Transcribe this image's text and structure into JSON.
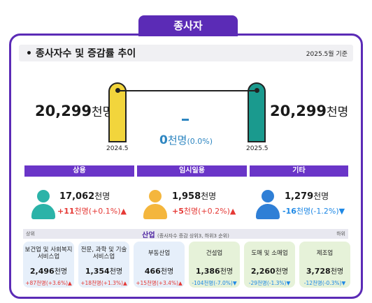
{
  "tab_label": "종사자",
  "section_title": "• 종사자수 및 증감률 추이",
  "reference_date": "2025.5월 기준",
  "total": {
    "left_value": "20,299",
    "right_value": "20,299",
    "unit": "천명",
    "left_year": "2024.5",
    "right_year": "2025.5",
    "change_value": "0",
    "change_unit": "천명",
    "change_pct": "(0.0%)"
  },
  "categories": [
    {
      "label": "상용",
      "value": "17,062",
      "unit": "천명",
      "change": "+11",
      "change_unit": "천명",
      "pct": "(+0.1%)",
      "arrow": "up",
      "color": "#2bb3a8"
    },
    {
      "label": "임시일용",
      "value": "1,958",
      "unit": "천명",
      "change": "+5",
      "change_unit": "천명",
      "pct": "(+0.2%)",
      "arrow": "up",
      "color": "#f4b63d"
    },
    {
      "label": "기타",
      "value": "1,279",
      "unit": "천명",
      "change": "-16",
      "change_unit": "천명",
      "pct": "(-1.2%)",
      "arrow": "down",
      "color": "#2f7fd6"
    }
  ],
  "industry": {
    "title": "산업",
    "subtitle": "(종사자수 증감 상위3, 하위3 순위)",
    "left_label": "상위",
    "right_label": "하위",
    "items": [
      {
        "name_lines": [
          "보건업 및 사회복지",
          "서비스업"
        ],
        "value": "2,496",
        "unit": "천명",
        "change": "+87천명(+3.6%)",
        "arrow": "up",
        "sign": "pos"
      },
      {
        "name_lines": [
          "전문, 과학 및 기술",
          "서비스업"
        ],
        "value": "1,354",
        "unit": "천명",
        "change": "+18천명(+1.3%)",
        "arrow": "up",
        "sign": "pos"
      },
      {
        "name_lines": [
          "부동산업"
        ],
        "value": "466",
        "unit": "천명",
        "change": "+15천명(+3.4%)",
        "arrow": "up",
        "sign": "pos"
      },
      {
        "name_lines": [
          "건설업"
        ],
        "value": "1,386",
        "unit": "천명",
        "change": "-104천명(-7.0%)",
        "arrow": "down",
        "sign": "neg"
      },
      {
        "name_lines": [
          "도매 및 소매업"
        ],
        "value": "2,260",
        "unit": "천명",
        "change": "-29천명(-1.3%)",
        "arrow": "down",
        "sign": "neg"
      },
      {
        "name_lines": [
          "제조업"
        ],
        "value": "3,728",
        "unit": "천명",
        "change": "-12천명(-0.3%)",
        "arrow": "down",
        "sign": "neg"
      }
    ]
  },
  "colors": {
    "accent_purple": "#5b2bb6",
    "pill_left": "#f2d53c",
    "pill_right": "#1a9a8e",
    "up_red": "#e53935",
    "down_blue": "#1e88e5"
  }
}
